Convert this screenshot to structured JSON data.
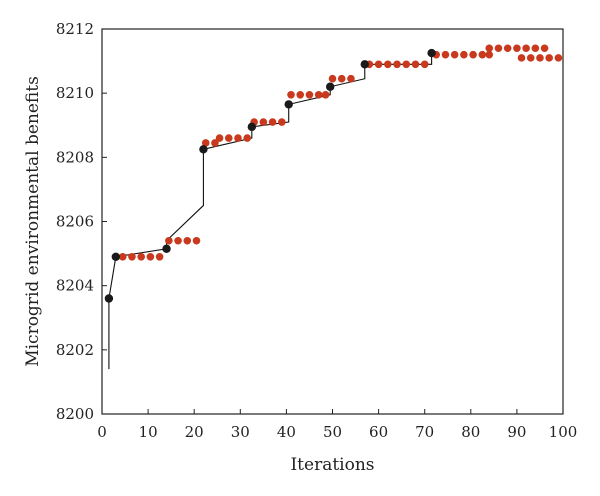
{
  "chart_data": {
    "type": "scatter",
    "title": "",
    "xlabel": "Iterations",
    "ylabel": "Microgrid environmental benefits",
    "xlim": [
      0,
      100
    ],
    "ylim": [
      8200,
      8212
    ],
    "xticks": [
      "0",
      "10",
      "20",
      "30",
      "40",
      "50",
      "60",
      "70",
      "80",
      "90",
      "100"
    ],
    "yticks": [
      "8200",
      "8202",
      "8204",
      "8206",
      "8208",
      "8210",
      "8212"
    ],
    "grid": false,
    "legend": "none",
    "colors": {
      "line": "#111111",
      "black_marker": "#1a1a1a",
      "red_marker": "#c8391e"
    },
    "series": [
      {
        "values": [
          [
            1.5,
            8201.4
          ],
          [
            1.5,
            8203.6
          ],
          [
            3,
            8204.9
          ],
          [
            14,
            8205.15
          ],
          [
            14,
            8205.4
          ],
          [
            22,
            8206.5
          ],
          [
            22,
            8208.25
          ],
          [
            32.5,
            8208.6
          ],
          [
            32.5,
            8208.95
          ],
          [
            40.5,
            8209.1
          ],
          [
            40.5,
            8209.65
          ],
          [
            49.5,
            8209.95
          ],
          [
            49.5,
            8210.2
          ],
          [
            57,
            8210.45
          ],
          [
            57,
            8210.9
          ],
          [
            71.5,
            8210.9
          ],
          [
            71.5,
            8211.25
          ]
        ]
      },
      {
        "values": [
          [
            1.5,
            8203.6
          ],
          [
            3,
            8204.9
          ],
          [
            14,
            8205.15
          ],
          [
            22,
            8208.25
          ],
          [
            32.5,
            8208.95
          ],
          [
            40.5,
            8209.65
          ],
          [
            49.5,
            8210.2
          ],
          [
            57,
            8210.9
          ],
          [
            71.5,
            8211.25
          ]
        ]
      },
      {
        "values": [
          [
            4.5,
            8204.9
          ],
          [
            6.5,
            8204.9
          ],
          [
            8.5,
            8204.9
          ],
          [
            10.5,
            8204.9
          ],
          [
            12.5,
            8204.9
          ],
          [
            14.5,
            8205.4
          ],
          [
            16.5,
            8205.4
          ],
          [
            18.5,
            8205.4
          ],
          [
            20.5,
            8205.4
          ],
          [
            22.5,
            8208.45
          ],
          [
            24.5,
            8208.45
          ],
          [
            25.5,
            8208.6
          ],
          [
            27.5,
            8208.6
          ],
          [
            29.5,
            8208.6
          ],
          [
            31.5,
            8208.6
          ],
          [
            33,
            8209.1
          ],
          [
            35,
            8209.1
          ],
          [
            37,
            8209.1
          ],
          [
            39,
            8209.1
          ],
          [
            41,
            8209.95
          ],
          [
            43,
            8209.95
          ],
          [
            45,
            8209.95
          ],
          [
            47,
            8209.95
          ],
          [
            48.5,
            8209.95
          ],
          [
            50,
            8210.45
          ],
          [
            52,
            8210.45
          ],
          [
            54,
            8210.45
          ],
          [
            58,
            8210.9
          ],
          [
            60,
            8210.9
          ],
          [
            62,
            8210.9
          ],
          [
            64,
            8210.9
          ],
          [
            66,
            8210.9
          ],
          [
            68,
            8210.9
          ],
          [
            70,
            8210.9
          ],
          [
            72.5,
            8211.2
          ],
          [
            74.5,
            8211.2
          ],
          [
            76.5,
            8211.2
          ],
          [
            78.5,
            8211.2
          ],
          [
            80.5,
            8211.2
          ],
          [
            82.5,
            8211.2
          ],
          [
            84,
            8211.2
          ],
          [
            84,
            8211.4
          ],
          [
            86,
            8211.4
          ],
          [
            88,
            8211.4
          ],
          [
            90,
            8211.4
          ],
          [
            92,
            8211.4
          ],
          [
            94,
            8211.4
          ],
          [
            96,
            8211.4
          ],
          [
            91,
            8211.1
          ],
          [
            93,
            8211.1
          ],
          [
            95,
            8211.1
          ],
          [
            97,
            8211.1
          ],
          [
            99,
            8211.1
          ]
        ]
      }
    ]
  }
}
